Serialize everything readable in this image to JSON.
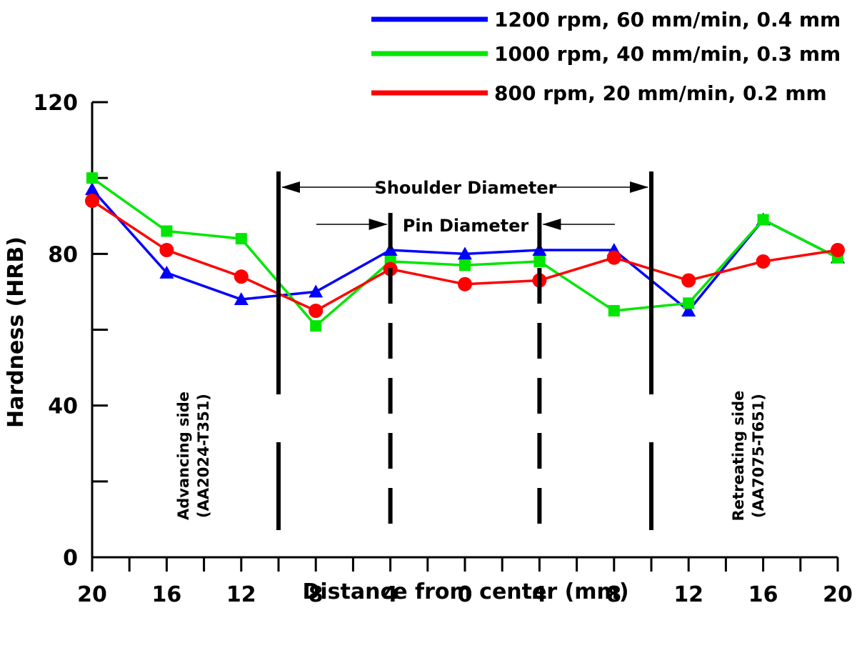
{
  "chart_data": {
    "type": "line",
    "xlabel": "Distance from center (mm)",
    "ylabel": "Hardness (HRB)",
    "ylim": [
      0,
      120
    ],
    "yticks": [
      "0",
      "40",
      "80",
      "120"
    ],
    "xlim": [
      -20,
      20
    ],
    "xticks": [
      "20",
      "16",
      "12",
      "8",
      "4",
      "0",
      "4",
      "8",
      "12",
      "16",
      "20"
    ],
    "x": [
      -20,
      -16,
      -12,
      -8,
      -4,
      0,
      4,
      8,
      12,
      16,
      20
    ],
    "grid": false,
    "legend_position": "top-right",
    "series": [
      {
        "name": "1200 rpm, 60 mm/min, 0.4 mm",
        "color": "#0000ff",
        "marker": "triangle",
        "values": [
          97,
          75,
          68,
          70,
          81,
          80,
          81,
          81,
          65,
          89,
          79
        ]
      },
      {
        "name": "1000 rpm, 40 mm/min, 0.3 mm",
        "color": "#00e600",
        "marker": "square",
        "values": [
          100,
          86,
          84,
          61,
          78,
          77,
          78,
          65,
          67,
          89,
          79
        ]
      },
      {
        "name": "800 rpm, 20 mm/min, 0.2 mm",
        "color": "#ff0000",
        "marker": "circle",
        "values": [
          94,
          81,
          74,
          65,
          76,
          72,
          73,
          79,
          73,
          78,
          81
        ]
      }
    ],
    "annotations": {
      "shoulder": {
        "text": "Shoulder Diameter",
        "x": [
          -10,
          10
        ]
      },
      "pin": {
        "text": "Pin Diameter",
        "x": [
          -4,
          4
        ]
      },
      "advancing_side": [
        "Advancing side",
        "(AA2024-T351)"
      ],
      "retreating_side": [
        "Retreating side",
        "(AA7075-T651)"
      ]
    }
  }
}
